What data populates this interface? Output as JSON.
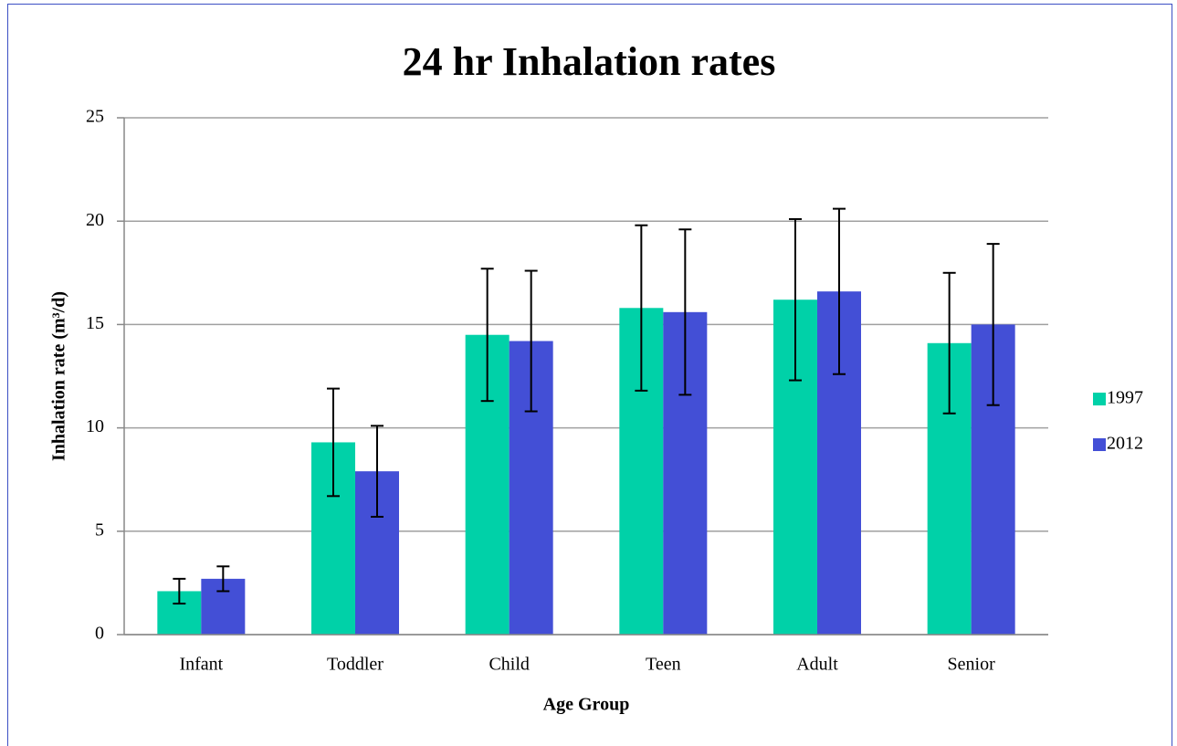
{
  "chart_data": {
    "type": "bar",
    "title": "24 hr Inhalation rates",
    "x_label": "Age Group",
    "y_label": "Inhalation rate (m³/d)",
    "categories": [
      "Infant",
      "Toddler",
      "Child",
      "Teen",
      "Adult",
      "Senior"
    ],
    "series": [
      {
        "name": "1997",
        "color": "#00d1a8",
        "values": [
          2.1,
          9.3,
          14.5,
          15.8,
          16.2,
          14.1
        ],
        "errors": [
          0.6,
          2.6,
          3.2,
          4.0,
          3.9,
          3.4
        ]
      },
      {
        "name": "2012",
        "color": "#434fd6",
        "values": [
          2.7,
          7.9,
          14.2,
          15.6,
          16.6,
          15.0
        ],
        "errors": [
          0.6,
          2.2,
          3.4,
          4.0,
          4.0,
          3.9
        ]
      }
    ],
    "ylim": [
      0,
      25
    ],
    "yticks": [
      0,
      5,
      10,
      15,
      20,
      25
    ],
    "grid": true,
    "legend": "right"
  }
}
